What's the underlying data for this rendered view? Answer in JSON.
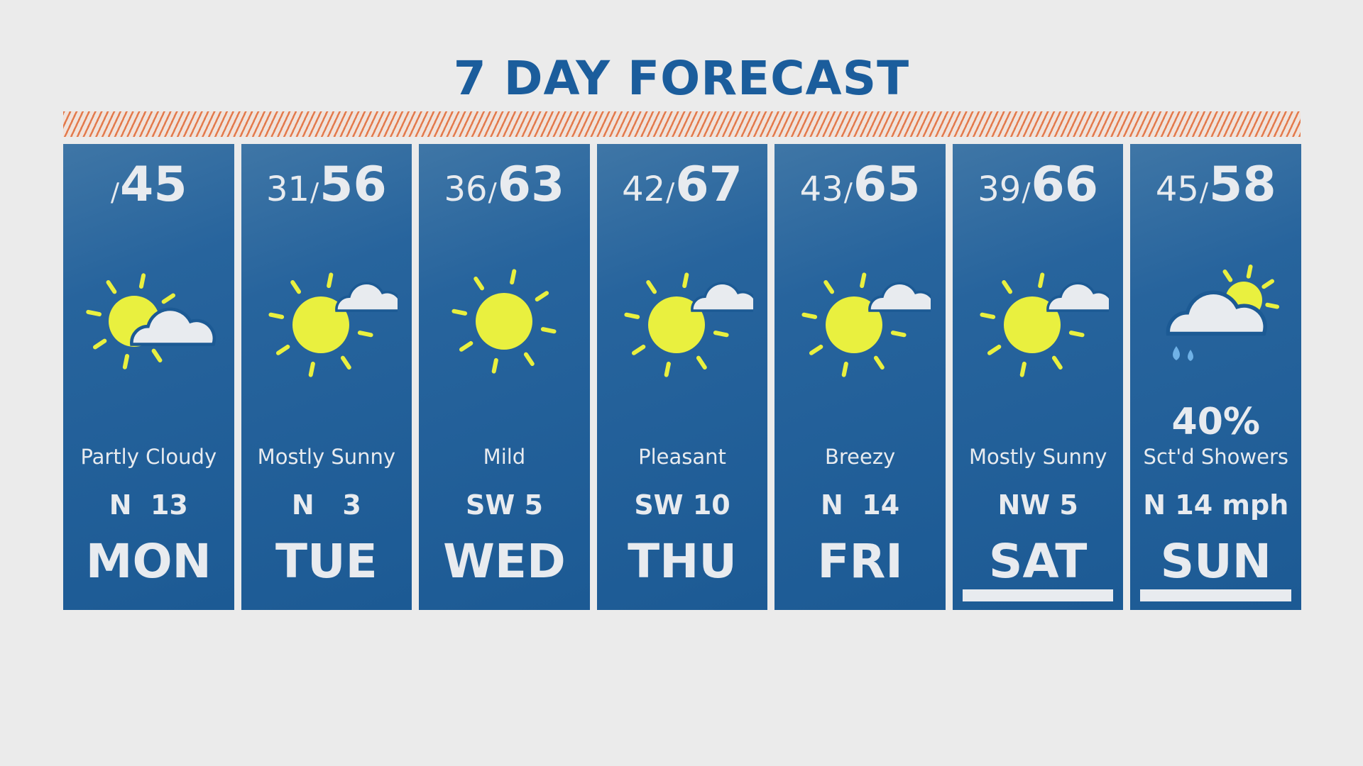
{
  "title": "7 DAY FORECAST",
  "colors": {
    "title": "#1b5d9c",
    "panel": "#1c5a94",
    "hatch": "#e37a4c",
    "sun": "#e9f03f",
    "cloud": "#e8ebef",
    "rain": "#6fb1e6"
  },
  "days": [
    {
      "day": "MON",
      "low": "",
      "high": "45",
      "icon": "partly-cloudy",
      "precip": "",
      "desc": "Partly Cloudy",
      "wind": "N  13",
      "underline": false
    },
    {
      "day": "TUE",
      "low": "31",
      "high": "56",
      "icon": "mostly-sunny",
      "precip": "",
      "desc": "Mostly Sunny",
      "wind": "N   3",
      "underline": false
    },
    {
      "day": "WED",
      "low": "36",
      "high": "63",
      "icon": "sunny",
      "precip": "",
      "desc": "Mild",
      "wind": "SW 5",
      "underline": false
    },
    {
      "day": "THU",
      "low": "42",
      "high": "67",
      "icon": "mostly-sunny",
      "precip": "",
      "desc": "Pleasant",
      "wind": "SW 10",
      "underline": false
    },
    {
      "day": "FRI",
      "low": "43",
      "high": "65",
      "icon": "mostly-sunny",
      "precip": "",
      "desc": "Breezy",
      "wind": "N  14",
      "underline": false
    },
    {
      "day": "SAT",
      "low": "39",
      "high": "66",
      "icon": "mostly-sunny",
      "precip": "",
      "desc": "Mostly Sunny",
      "wind": "NW 5",
      "underline": true
    },
    {
      "day": "SUN",
      "low": "45",
      "high": "58",
      "icon": "showers",
      "precip": "40%",
      "desc": "Sct'd Showers",
      "wind": "N 14 mph",
      "underline": true
    }
  ]
}
